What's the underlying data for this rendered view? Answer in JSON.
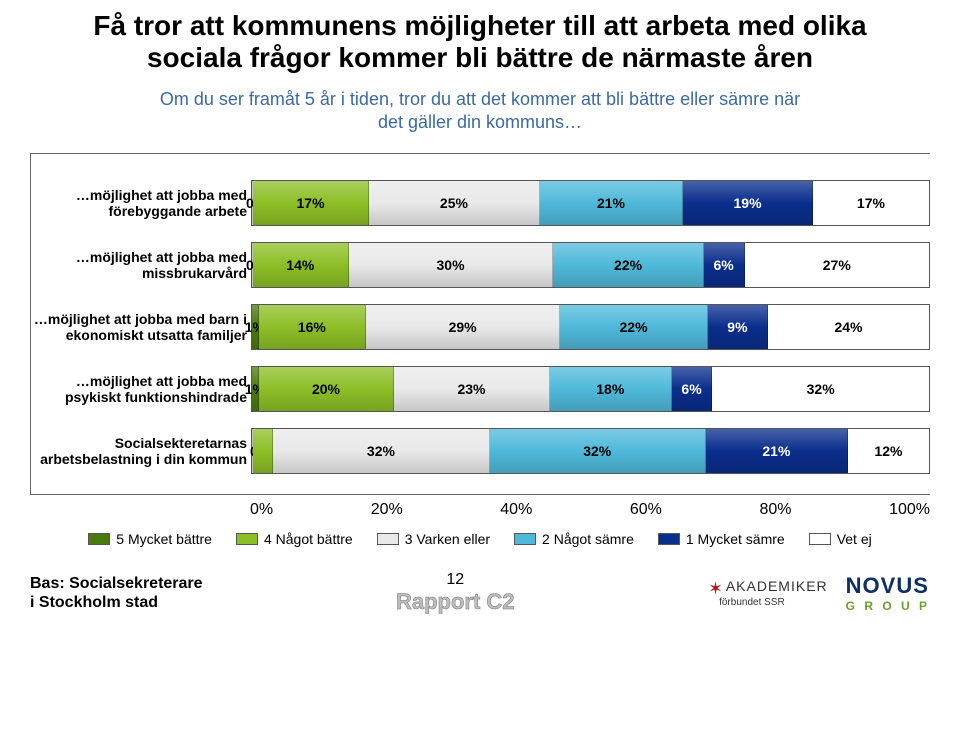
{
  "title_line1": "Få tror att kommunens möjligheter till att arbeta med olika",
  "title_line2": "sociala frågor kommer bli bättre de närmaste åren",
  "subtitle_line1": "Om du ser framåt 5 år i tiden, tror du att det kommer att bli bättre eller sämre när",
  "subtitle_line2": "det gäller din kommuns…",
  "chart": {
    "type": "stacked-bar-horizontal",
    "xmin": 0,
    "xmax": 100,
    "ticks": [
      "0%",
      "20%",
      "40%",
      "60%",
      "80%",
      "100%"
    ],
    "series": [
      {
        "key": "s1",
        "name": "5 Mycket bättre",
        "color": "#4a7a0d"
      },
      {
        "key": "s2",
        "name": "4 Något bättre",
        "color": "#8cbf26"
      },
      {
        "key": "s3",
        "name": "3 Varken eller",
        "color": "#e9e9e9"
      },
      {
        "key": "s4",
        "name": "2 Något sämre",
        "color": "#4fb9d9"
      },
      {
        "key": "s5",
        "name": "1 Mycket sämre",
        "color": "#0a2e8c"
      },
      {
        "key": "s6",
        "name": "Vet ej",
        "color": "#ffffff"
      }
    ],
    "rows": [
      {
        "label": "…möjlighet att jobba med förebyggande arbete",
        "values": {
          "s1": 0,
          "s2": 17,
          "s3": 25,
          "s4": 21,
          "s5": 19,
          "s6": 17
        },
        "show": {
          "s1": "0%",
          "s2": "17%",
          "s3": "25%",
          "s4": "21%",
          "s5": "19%",
          "s6": "17%"
        }
      },
      {
        "label": "…möjlighet att jobba med missbrukarvård",
        "values": {
          "s1": 0,
          "s2": 14,
          "s3": 30,
          "s4": 22,
          "s5": 6,
          "s6": 27
        },
        "show": {
          "s1": "0%",
          "s2": "14%",
          "s3": "30%",
          "s4": "22%",
          "s5": "6%",
          "s6": "27%"
        }
      },
      {
        "label": "…möjlighet att jobba med barn i ekonomiskt utsatta familjer",
        "values": {
          "s1": 1,
          "s2": 16,
          "s3": 29,
          "s4": 22,
          "s5": 9,
          "s6": 24
        },
        "show": {
          "s1": "1%",
          "s2": "16%",
          "s3": "29%",
          "s4": "22%",
          "s5": "9%",
          "s6": "24%"
        }
      },
      {
        "label": "…möjlighet att jobba med psykiskt funktionshindrade",
        "values": {
          "s1": 1,
          "s2": 20,
          "s3": 23,
          "s4": 18,
          "s5": 6,
          "s6": 32
        },
        "show": {
          "s1": "1%",
          "s2": "20%",
          "s3": "23%",
          "s4": "18%",
          "s5": "6%",
          "s6": "32%"
        }
      },
      {
        "label": "Socialsekteretarnas arbetsbelastning i din kommun",
        "values": {
          "s1": 0,
          "s2": 3,
          "s3": 32,
          "s4": 32,
          "s5": 21,
          "s6": 12
        },
        "show": {
          "s1": "0%",
          "s2": "3%",
          "s3": "32%",
          "s4": "32%",
          "s5": "21%",
          "s6": "12%"
        },
        "merged_left": "0%3%"
      }
    ],
    "label_fontsize": 14,
    "title_fontsize": 28,
    "grid_color": "#666666",
    "background_color": "#ffffff"
  },
  "footer": {
    "base_line1": "Bas: Socialsekreterare",
    "base_line2": "i Stockholm stad",
    "page_number": "12",
    "report": "Rapport C2",
    "logo_akad_top": "AKADEMIKER",
    "logo_akad_bottom": "förbundet SSR",
    "logo_novus": "NOVUS",
    "logo_novus_sub": "G R O U P"
  }
}
